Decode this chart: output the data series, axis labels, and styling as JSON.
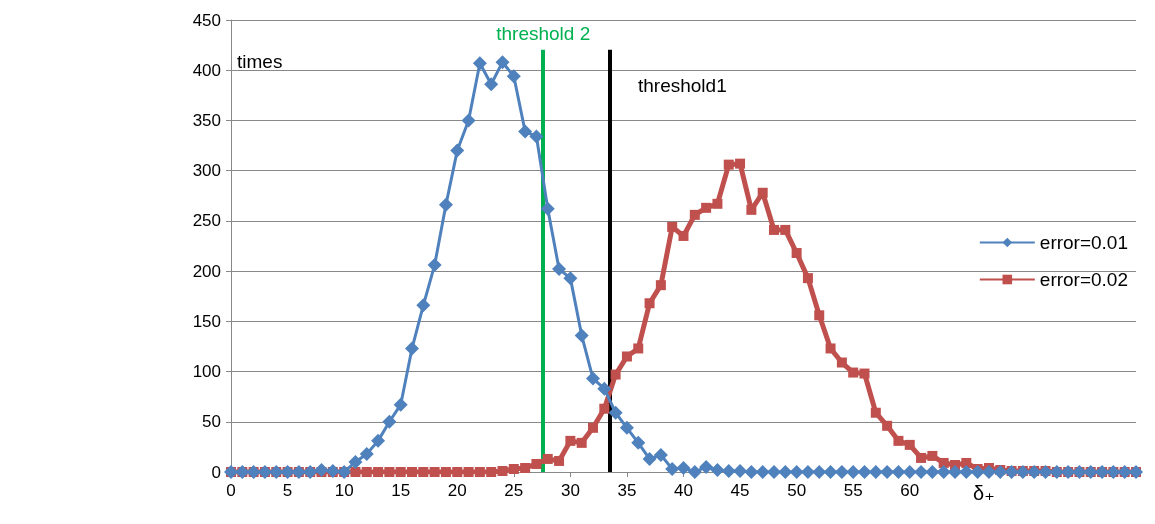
{
  "chart_data": {
    "type": "line",
    "ylabel": "times",
    "xlabel": "δ₊",
    "x": [
      0,
      1,
      2,
      3,
      4,
      5,
      6,
      7,
      8,
      9,
      10,
      11,
      12,
      13,
      14,
      15,
      16,
      17,
      18,
      19,
      20,
      21,
      22,
      23,
      24,
      25,
      26,
      27,
      28,
      29,
      30,
      31,
      32,
      33,
      34,
      35,
      36,
      37,
      38,
      39,
      40,
      41,
      42,
      43,
      44,
      45,
      46,
      47,
      48,
      49,
      50,
      51,
      52,
      53,
      54,
      55,
      56,
      57,
      58,
      59,
      60,
      61,
      62,
      63,
      64,
      65,
      66,
      67,
      68,
      69,
      70,
      71,
      72,
      73,
      74,
      75,
      76,
      77,
      78,
      79,
      80
    ],
    "series": [
      {
        "name": "error=0.01",
        "color": "#4f81bd",
        "marker": "diamond",
        "values": [
          0,
          0,
          0,
          0,
          0,
          0,
          0,
          0,
          2,
          1,
          0,
          10,
          18,
          31,
          50,
          67,
          123,
          166,
          206,
          266,
          320,
          350,
          407,
          386,
          408,
          394,
          339,
          334,
          262,
          202,
          193,
          136,
          93,
          83,
          59,
          44,
          29,
          13,
          17,
          3,
          4,
          0,
          5,
          2,
          1,
          1,
          0,
          0,
          0,
          0,
          0,
          0,
          0,
          0,
          0,
          0,
          0,
          0,
          0,
          0,
          0,
          0,
          0,
          0,
          0,
          0,
          0,
          0,
          0,
          0,
          0,
          0,
          0,
          0,
          0,
          0,
          0,
          0,
          0,
          0,
          0
        ]
      },
      {
        "name": "error=0.02",
        "color": "#c0504d",
        "marker": "square",
        "values": [
          0,
          0,
          0,
          0,
          0,
          0,
          0,
          0,
          0,
          0,
          0,
          0,
          0,
          0,
          0,
          0,
          0,
          0,
          0,
          0,
          0,
          0,
          0,
          0,
          1,
          3,
          4,
          8,
          13,
          11,
          31,
          29,
          44,
          63,
          97,
          115,
          123,
          168,
          186,
          244,
          235,
          256,
          263,
          267,
          306,
          307,
          261,
          278,
          241,
          241,
          218,
          193,
          156,
          123,
          109,
          99,
          98,
          59,
          46,
          31,
          27,
          14,
          16,
          9,
          7,
          9,
          3,
          4,
          2,
          1,
          1,
          1,
          1,
          0,
          0,
          0,
          0,
          0,
          0,
          0,
          0
        ]
      }
    ],
    "xlim": [
      0,
      80
    ],
    "xticks": [
      0,
      5,
      10,
      15,
      20,
      25,
      30,
      35,
      40,
      45,
      50,
      55,
      60
    ],
    "ylim": [
      0,
      450
    ],
    "yticks": [
      0,
      50,
      100,
      150,
      200,
      250,
      300,
      350,
      400,
      450
    ],
    "ref_lines": [
      {
        "axis": "x",
        "value": 27.6,
        "label": "threshold 2",
        "color": "#00b050"
      },
      {
        "axis": "x",
        "value": 33.5,
        "label": "threshold1",
        "color": "#000000"
      }
    ],
    "grid": "y",
    "legend": "right"
  }
}
